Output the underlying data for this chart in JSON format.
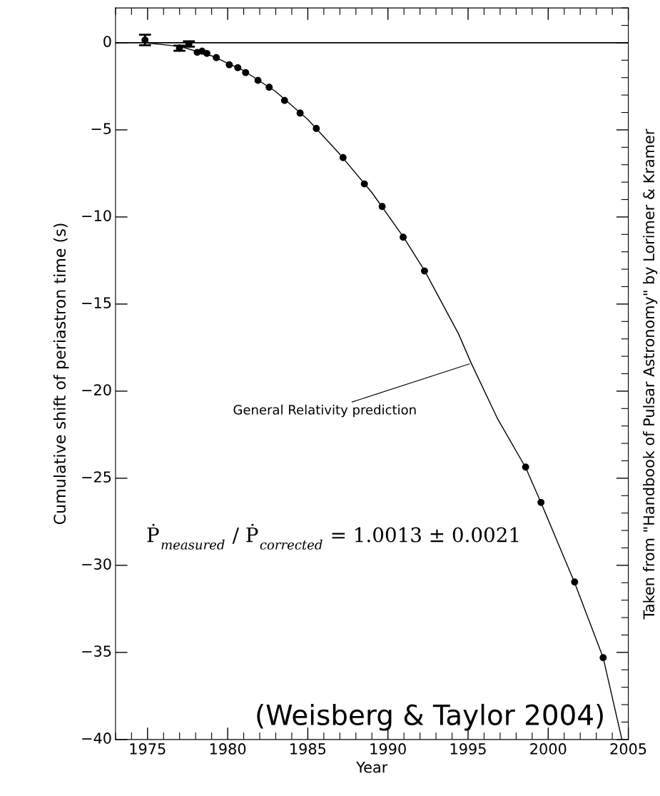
{
  "chart_data": {
    "type": "scatter",
    "xlabel": "Year",
    "ylabel": "Cumulative shift of periastron time (s)",
    "x": [
      1974.84,
      1976.99,
      1977.58,
      1978.1,
      1978.4,
      1978.7,
      1979.29,
      1980.1,
      1980.63,
      1981.12,
      1981.89,
      1982.59,
      1983.55,
      1984.52,
      1985.53,
      1987.2,
      1988.53,
      1989.64,
      1990.95,
      1992.28,
      1998.59,
      1999.55,
      2001.65,
      2003.43
    ],
    "series": [
      {
        "type": "scatter",
        "marker": "circle",
        "color": "#000000",
        "values": [
          0.16,
          -0.31,
          -0.07,
          -0.55,
          -0.48,
          -0.61,
          -0.85,
          -1.26,
          -1.43,
          -1.71,
          -2.16,
          -2.55,
          -3.31,
          -4.04,
          -4.92,
          -6.59,
          -8.1,
          -9.4,
          -11.16,
          -13.1,
          -24.36,
          -26.39,
          -30.96,
          -35.3
        ],
        "errors": [
          0.3,
          0.15,
          0.15,
          null,
          null,
          null,
          null,
          null,
          null,
          null,
          null,
          null,
          null,
          null,
          null,
          null,
          null,
          null,
          null,
          null,
          null,
          null,
          null,
          null
        ]
      },
      {
        "type": "line",
        "marker": "none",
        "color": "#000000",
        "x": [
          1974.8,
          1977,
          1979,
          1981,
          1983,
          1985,
          1987,
          1989,
          1991,
          1992.3,
          1994.4,
          1995.2,
          1996.85,
          1998.6,
          1999.55,
          2001.65,
          2003.43,
          2004.6
        ],
        "values": [
          0,
          -0.2,
          -0.75,
          -1.6,
          -2.8,
          -4.4,
          -6.4,
          -8.6,
          -11.2,
          -13.1,
          -16.7,
          -18.4,
          -21.6,
          -24.4,
          -26.4,
          -31.0,
          -35.3,
          -40
        ]
      }
    ],
    "legend": false,
    "grid": false,
    "xlim": [
      1973,
      2005
    ],
    "xticks": [
      1975,
      1980,
      1985,
      1990,
      1995,
      2000,
      2005
    ],
    "ylim": [
      -40,
      2
    ],
    "yticks": [
      {
        "value": 0,
        "label": "0"
      },
      {
        "value": -5,
        "label": "−5"
      },
      {
        "value": -10,
        "label": "−10"
      },
      {
        "value": -15,
        "label": "−15"
      },
      {
        "value": -20,
        "label": "−20"
      },
      {
        "value": -25,
        "label": "−25"
      },
      {
        "value": -30,
        "label": "−30"
      },
      {
        "value": -35,
        "label": "−35"
      },
      {
        "value": -40,
        "label": "−40"
      }
    ],
    "ref_lines": [
      {
        "axis": "y",
        "value": 0,
        "color": "#000000",
        "line_style": "solid"
      }
    ],
    "annotations": [
      {
        "text": "General Relativity prediction",
        "x": 1995.2,
        "y": -18.4
      },
      "Ṗ$_{measured}$ / Ṗ$_{corrected}$ = 1.0013 ± 0.0021",
      "(Weisberg & Taylor 2004)",
      "Taken from \"Handbook of Pulsar Astronomy\" by Lorimer & Kramer"
    ]
  }
}
